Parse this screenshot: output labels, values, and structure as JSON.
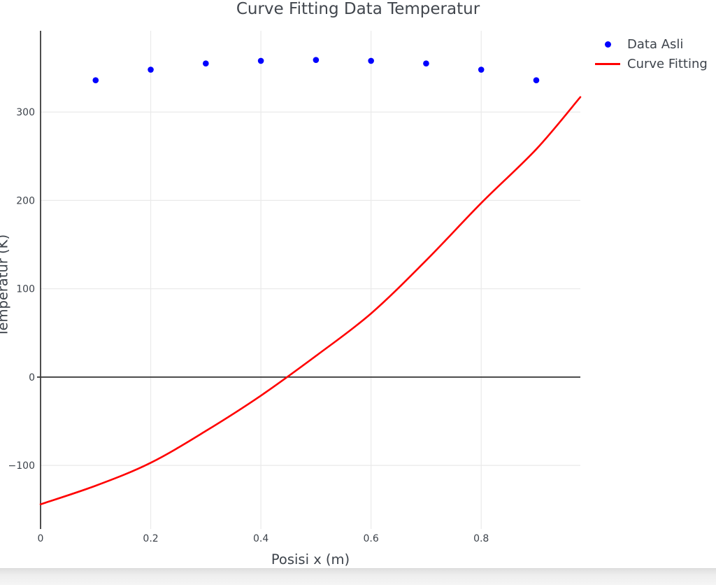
{
  "page": {
    "background": "#ffffff",
    "bottom_bar_top_color": "#e0e0e0",
    "bottom_bar_bottom_color": "#f5f5f5"
  },
  "chart_data": {
    "type": "scatter",
    "title": "Curve Fitting Data Temperatur",
    "xlabel": "Posisi x (m)",
    "ylabel": "Temperatur (K)",
    "xlim": [
      0,
      0.98
    ],
    "ylim": [
      -172,
      392
    ],
    "x_ticks": [
      0,
      0.2,
      0.4,
      0.6,
      0.8
    ],
    "x_tick_labels": [
      "0",
      "0.2",
      "0.4",
      "0.6",
      "0.8"
    ],
    "y_ticks": [
      -100,
      0,
      100,
      200,
      300
    ],
    "y_tick_labels": [
      "−100",
      "0",
      "100",
      "200",
      "300"
    ],
    "grid": true,
    "grid_color": "#eaeaea",
    "axis_line_color": "#3a3a3a",
    "zero_line_color": "#333333",
    "text_color": "#3d434b",
    "legend": {
      "position": "outside-top-right",
      "frame": false,
      "entries": [
        {
          "label": "Data Asli",
          "marker": "dot",
          "color": "#0000ff"
        },
        {
          "label": "Curve Fitting",
          "marker": "line",
          "color": "#ff0000"
        }
      ]
    },
    "series": [
      {
        "name": "Data Asli",
        "type": "scatter",
        "color": "#0000ff",
        "marker_size": 4.3,
        "x": [
          0.1,
          0.2,
          0.3,
          0.4,
          0.5,
          0.6,
          0.7,
          0.8,
          0.9
        ],
        "y": [
          336,
          348,
          355,
          358,
          359,
          358,
          355,
          348,
          336
        ]
      },
      {
        "name": "Curve Fitting",
        "type": "line",
        "color": "#ff0000",
        "line_width": 2.6,
        "x": [
          0,
          0.1,
          0.2,
          0.3,
          0.4,
          0.5,
          0.6,
          0.7,
          0.8,
          0.9,
          0.98
        ],
        "y": [
          -144,
          -123,
          -97,
          -61,
          -21,
          24,
          72,
          132,
          197,
          258,
          317
        ]
      }
    ]
  }
}
